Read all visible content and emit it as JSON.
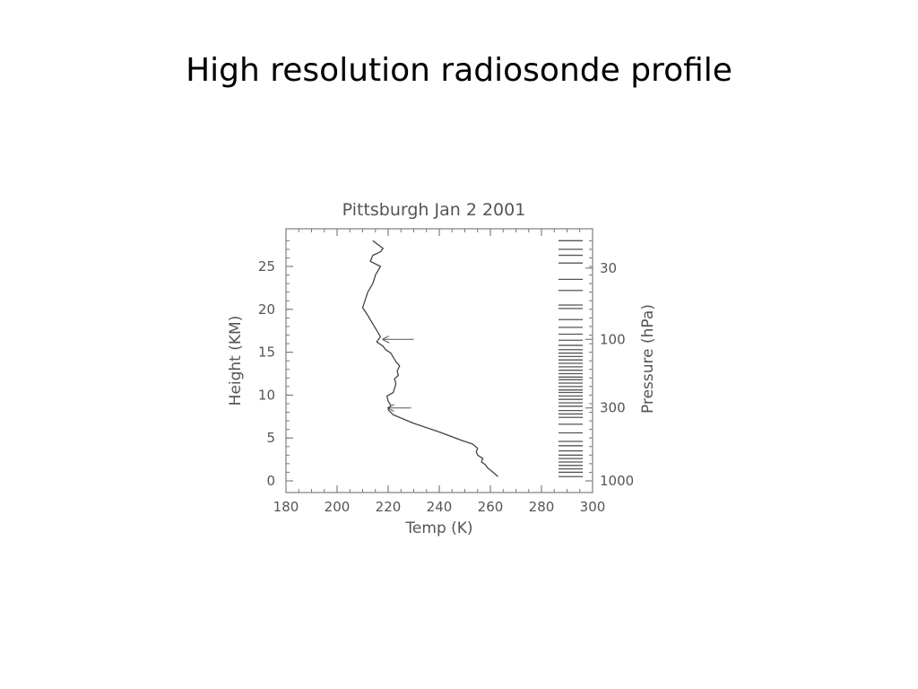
{
  "slide": {
    "title": "High resolution radiosonde profile"
  },
  "chart_data": {
    "type": "line",
    "title": "Pittsburgh Jan 2 2001",
    "xlabel": "Temp (K)",
    "ylabel": "Height (KM)",
    "y2label": "Pressure (hPa)",
    "xlim": [
      180,
      300
    ],
    "ylim": [
      0,
      28
    ],
    "x_ticks": [
      "180",
      "200",
      "220",
      "240",
      "260",
      "280",
      "300"
    ],
    "y_ticks": [
      "0",
      "5",
      "10",
      "15",
      "20",
      "25"
    ],
    "y2_ticks": [
      {
        "label": "1000",
        "height_km": 0
      },
      {
        "label": "300",
        "height_km": 8.5
      },
      {
        "label": "100",
        "height_km": 16.5
      },
      {
        "label": "30",
        "height_km": 24.8
      }
    ],
    "grid": false,
    "series": [
      {
        "x": [
          263,
          261,
          259,
          258,
          256.5,
          257,
          255,
          254.5,
          255,
          253,
          249,
          240,
          230,
          222,
          220,
          221,
          220,
          219.5,
          222,
          222.5,
          223,
          222.5,
          224,
          223.5,
          224.5,
          223,
          222,
          221,
          219,
          218,
          215.5,
          217,
          216,
          214,
          212,
          210,
          211,
          212,
          214,
          215,
          217,
          213,
          214,
          217,
          218,
          214
        ],
        "y": [
          0.5,
          1,
          1.5,
          1.9,
          2.2,
          2.6,
          3,
          3.4,
          3.8,
          4.3,
          4.7,
          5.7,
          6.7,
          7.7,
          8.3,
          8.8,
          9.3,
          9.9,
          10.3,
          10.8,
          11.3,
          11.9,
          12.3,
          12.8,
          13.4,
          13.9,
          14.4,
          14.9,
          15.3,
          15.7,
          16.2,
          16.8,
          17.3,
          18.3,
          19.3,
          20.2,
          21.1,
          22.0,
          23.0,
          24.0,
          25.0,
          25.6,
          26.3,
          26.7,
          27.1,
          28.0
        ]
      }
    ],
    "annotations": [
      {
        "type": "arrow",
        "from": [
          230,
          16.5
        ],
        "to": [
          218,
          16.5
        ]
      },
      {
        "type": "arrow",
        "from": [
          229,
          8.5
        ],
        "to": [
          220,
          8.5
        ]
      }
    ],
    "pressure_levels_km": [
      0.5,
      1,
      1.4,
      1.8,
      2.2,
      2.6,
      3.0,
      3.5,
      4.1,
      4.6,
      5.6,
      6.6,
      7.4,
      7.8,
      8.2,
      8.7,
      9.1,
      9.5,
      9.9,
      10.3,
      10.6,
      11.0,
      11.4,
      11.8,
      12.1,
      12.5,
      12.9,
      13.3,
      13.7,
      14.1,
      14.5,
      14.9,
      15.3,
      15.8,
      16.4,
      17.1,
      17.9,
      18.8,
      20.1,
      20.5,
      22.2,
      23.5,
      25.4,
      26.3,
      27.0,
      28.0
    ]
  }
}
